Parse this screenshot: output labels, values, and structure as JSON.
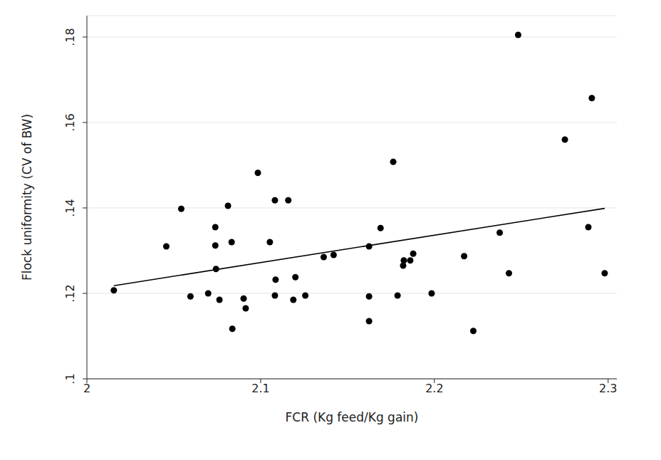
{
  "chart_data": {
    "type": "scatter",
    "x_label": "FCR (Kg feed/Kg gain)",
    "y_label": "Flock uniformity (CV of BW)",
    "xlim": [
      2,
      2.305
    ],
    "xticks": [
      2,
      2.1,
      2.2,
      2.3
    ],
    "ylim": [
      0.1,
      0.185
    ],
    "yticks": [
      {
        "value": 0.1,
        "label": ".1"
      },
      {
        "value": 0.12,
        "label": ".12"
      },
      {
        "value": 0.14,
        "label": ".14"
      },
      {
        "value": 0.16,
        "label": ".16"
      },
      {
        "value": 0.18,
        "label": ".18"
      }
    ],
    "grid": true,
    "series": [
      {
        "type": "scatter",
        "marker": "circle",
        "color": "#000000",
        "x": [
          2.0155,
          2.0457,
          2.0543,
          2.0596,
          2.0698,
          2.0739,
          2.0739,
          2.0743,
          2.0763,
          2.0812,
          2.0833,
          2.0837,
          2.0902,
          2.0914,
          2.0984,
          2.1053,
          2.1082,
          2.1086,
          2.1082,
          2.1159,
          2.1188,
          2.12,
          2.1257,
          2.1363,
          2.142,
          2.1624,
          2.1624,
          2.1624,
          2.169,
          2.1763,
          2.1788,
          2.182,
          2.1824,
          2.1861,
          2.1878,
          2.1984,
          2.2171,
          2.2224,
          2.2376,
          2.2429,
          2.2482,
          2.2751,
          2.2886,
          2.2906,
          2.298
        ],
        "values": [
          0.1207,
          0.131,
          0.1398,
          0.1193,
          0.12,
          0.1355,
          0.1312,
          0.1257,
          0.1185,
          0.1405,
          0.132,
          0.1117,
          0.1188,
          0.1165,
          0.1482,
          0.132,
          0.1418,
          0.1232,
          0.1195,
          0.1418,
          0.1185,
          0.1238,
          0.1195,
          0.1285,
          0.129,
          0.131,
          0.1193,
          0.1135,
          0.1353,
          0.1508,
          0.1195,
          0.1265,
          0.1277,
          0.1277,
          0.1293,
          0.12,
          0.1287,
          0.1112,
          0.1342,
          0.1247,
          0.1805,
          0.156,
          0.1355,
          0.1657,
          0.1247
        ]
      },
      {
        "type": "line",
        "line_style": "solid",
        "color": "#000000",
        "x": [
          2.0155,
          2.298
        ],
        "values": [
          0.1218,
          0.1399
        ]
      }
    ]
  }
}
